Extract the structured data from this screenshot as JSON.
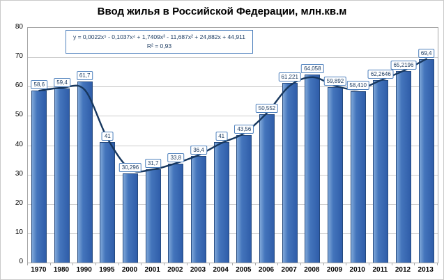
{
  "title": "Ввод жилья в Российской Федерации, млн.кв.м",
  "chart_data": {
    "type": "bar",
    "title": "Ввод жилья в Российской Федерации, млн.кв.м",
    "xlabel": "",
    "ylabel": "",
    "categories": [
      "1970",
      "1980",
      "1990",
      "1995",
      "2000",
      "2001",
      "2002",
      "2003",
      "2004",
      "2005",
      "2006",
      "2007",
      "2008",
      "2009",
      "2010",
      "2011",
      "2012",
      "2013"
    ],
    "values": [
      58.6,
      59.4,
      61.7,
      41,
      30.296,
      31.7,
      33.8,
      36.4,
      41,
      43.56,
      50.552,
      61.221,
      64.058,
      59.892,
      58.41,
      62.2646,
      65.2196,
      69.4
    ],
    "labels": [
      "58,6",
      "59,4",
      "61,7",
      "41",
      "30,296",
      "31,7",
      "33,8",
      "36,4",
      "41",
      "43,56",
      "50,552",
      "61,221",
      "64,058",
      "59,892",
      "58,410",
      "62,2646",
      "65,2196",
      "69,4"
    ],
    "ylim": [
      0,
      80
    ],
    "yticks": [
      0,
      10,
      20,
      30,
      40,
      50,
      60,
      70,
      80
    ],
    "grid": true,
    "legend": "none",
    "trendline": {
      "equation": "y = 0,0022x⁵ - 0,1037x⁴ + 1,7409x³ - 11,687x² + 24,882x + 44,911",
      "r2": "R² = 0,93"
    },
    "colors": {
      "bar_light": "#7fa8d9",
      "bar": "#4475bc",
      "bar_dark": "#2f5da9",
      "bar_border": "#24497e",
      "trendline": "#17375e",
      "label_border": "#4f81bd",
      "grid": "#cccccc"
    }
  }
}
